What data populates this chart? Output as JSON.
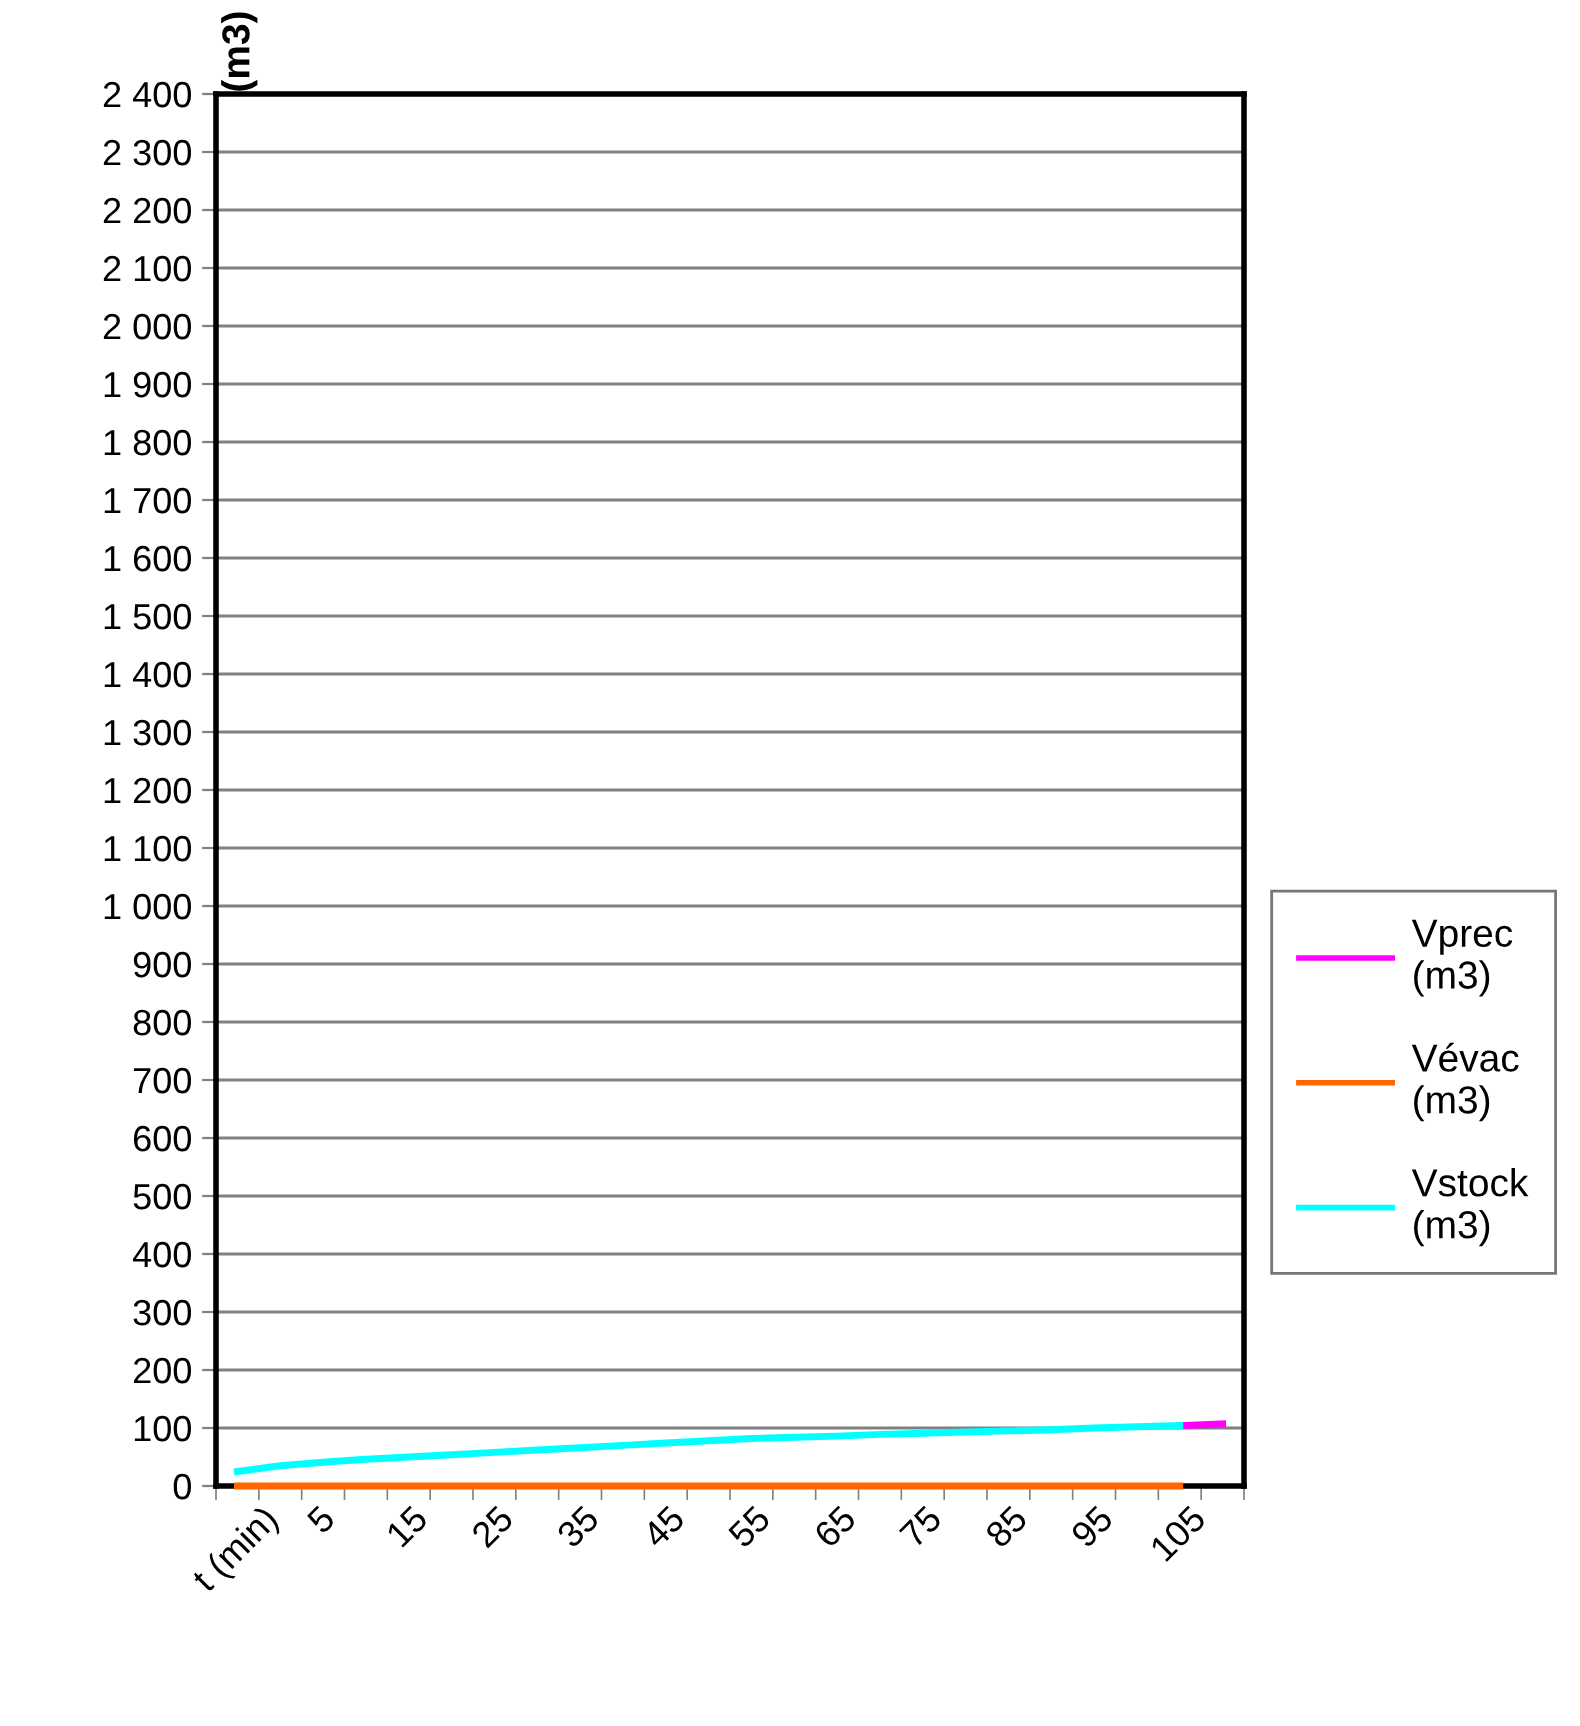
{
  "chart_data": {
    "type": "line",
    "ylabel": "(m3)",
    "categories": [
      "t (min)",
      null,
      "5",
      null,
      "15",
      null,
      "25",
      null,
      "35",
      null,
      "45",
      null,
      "55",
      null,
      "65",
      null,
      "75",
      null,
      "85",
      null,
      "95",
      null,
      "105",
      null
    ],
    "series": [
      {
        "name": "Vprec\n(m3)",
        "color": "#ff00ff",
        "values": [
          null,
          null,
          null,
          null,
          null,
          null,
          null,
          null,
          null,
          null,
          null,
          null,
          null,
          null,
          null,
          null,
          null,
          null,
          null,
          null,
          null,
          null,
          104,
          107
        ]
      },
      {
        "name": "Vévac\n(m3)",
        "color": "#ff6600",
        "values": [
          0,
          0,
          0,
          0,
          0,
          0,
          0,
          0,
          0,
          0,
          0,
          0,
          0,
          0,
          0,
          0,
          0,
          0,
          0,
          0,
          0,
          0,
          0,
          null
        ]
      },
      {
        "name": "Vstock\n(m3)",
        "color": "#00ffff",
        "values": [
          25,
          35,
          41,
          46,
          50,
          54,
          58,
          62,
          66,
          70,
          74,
          78,
          82,
          84,
          86,
          89,
          91,
          93,
          95,
          97,
          100,
          102,
          104,
          null
        ]
      }
    ],
    "ylim": [
      0,
      2400
    ],
    "yticks": [
      0,
      100,
      200,
      300,
      400,
      500,
      600,
      700,
      800,
      900,
      {
        "value": 1000,
        "label": "1 000"
      },
      {
        "value": 1100,
        "label": "1 100"
      },
      {
        "value": 1200,
        "label": "1 200"
      },
      {
        "value": 1300,
        "label": "1 300"
      },
      {
        "value": 1400,
        "label": "1 400"
      },
      {
        "value": 1500,
        "label": "1 500"
      },
      {
        "value": 1600,
        "label": "1 600"
      },
      {
        "value": 1700,
        "label": "1 700"
      },
      {
        "value": 1800,
        "label": "1 800"
      },
      {
        "value": 1900,
        "label": "1 900"
      },
      {
        "value": 2000,
        "label": "2 000"
      },
      {
        "value": 2100,
        "label": "2 100"
      },
      {
        "value": 2200,
        "label": "2 200"
      },
      {
        "value": 2300,
        "label": "2 300"
      },
      {
        "value": 2400,
        "label": "2 400"
      }
    ],
    "grid": "y",
    "legend": "right",
    "marker": "none",
    "line_style": "solid"
  }
}
